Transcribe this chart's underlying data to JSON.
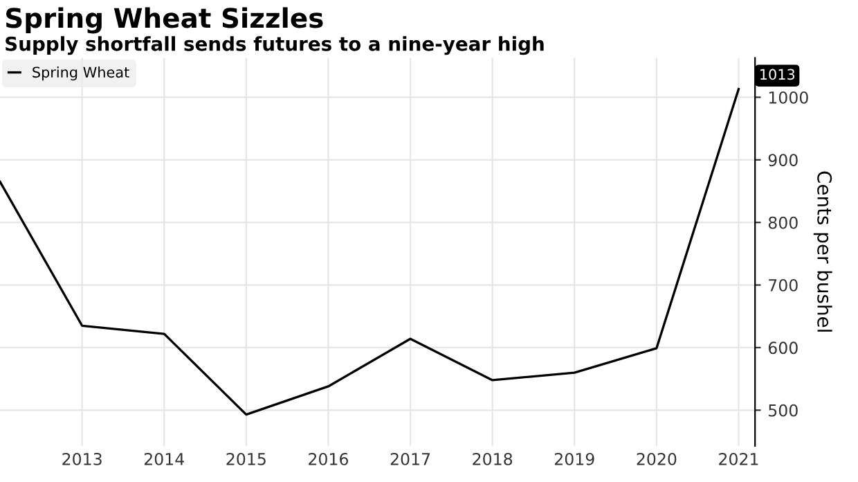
{
  "chart_data": {
    "type": "line",
    "title": "Spring Wheat Sizzles",
    "subtitle": "Supply shortfall sends futures to a nine-year high",
    "ylabel": "Cents per bushel",
    "x": [
      2012,
      2013,
      2014,
      2015,
      2016,
      2017,
      2018,
      2019,
      2020,
      2021
    ],
    "series": [
      {
        "name": "Spring Wheat",
        "color": "#000000",
        "values": [
          865,
          635,
          622,
          493,
          538,
          614,
          548,
          560,
          599,
          1013
        ],
        "value_labels": [
          null,
          null,
          null,
          null,
          null,
          null,
          null,
          null,
          null,
          "1013"
        ]
      }
    ],
    "xlim": [
      2012,
      2021.2
    ],
    "xticks": [
      2013,
      2014,
      2015,
      2016,
      2017,
      2018,
      2019,
      2020,
      2021
    ],
    "ylim": [
      443,
      1063
    ],
    "yticks": [
      500,
      600,
      700,
      800,
      900,
      1000
    ],
    "grid": true,
    "legend": "top left",
    "marker": "none",
    "line_style": "solid"
  }
}
